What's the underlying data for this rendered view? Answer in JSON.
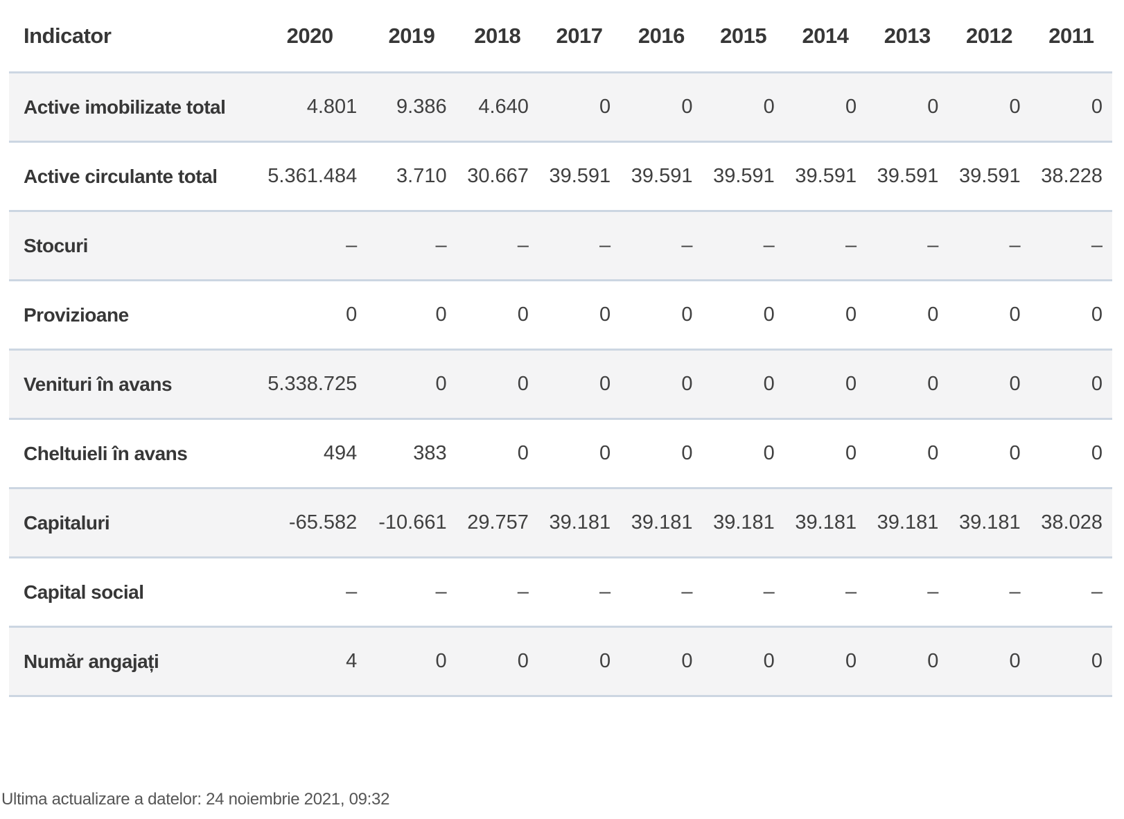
{
  "table": {
    "indicator_header": "Indicator",
    "year_headers": [
      "2020",
      "2019",
      "2018",
      "2017",
      "2016",
      "2015",
      "2014",
      "2013",
      "2012",
      "2011"
    ],
    "rows": [
      {
        "label": "Active imobilizate total",
        "values": [
          "4.801",
          "9.386",
          "4.640",
          "0",
          "0",
          "0",
          "0",
          "0",
          "0",
          "0"
        ]
      },
      {
        "label": "Active circulante total",
        "values": [
          "5.361.484",
          "3.710",
          "30.667",
          "39.591",
          "39.591",
          "39.591",
          "39.591",
          "39.591",
          "39.591",
          "38.228"
        ]
      },
      {
        "label": "Stocuri",
        "values": [
          "–",
          "–",
          "–",
          "–",
          "–",
          "–",
          "–",
          "–",
          "–",
          "–"
        ]
      },
      {
        "label": "Provizioane",
        "values": [
          "0",
          "0",
          "0",
          "0",
          "0",
          "0",
          "0",
          "0",
          "0",
          "0"
        ]
      },
      {
        "label": "Venituri în avans",
        "values": [
          "5.338.725",
          "0",
          "0",
          "0",
          "0",
          "0",
          "0",
          "0",
          "0",
          "0"
        ]
      },
      {
        "label": "Cheltuieli în avans",
        "values": [
          "494",
          "383",
          "0",
          "0",
          "0",
          "0",
          "0",
          "0",
          "0",
          "0"
        ]
      },
      {
        "label": "Capitaluri",
        "values": [
          "-65.582",
          "-10.661",
          "29.757",
          "39.181",
          "39.181",
          "39.181",
          "39.181",
          "39.181",
          "39.181",
          "38.028"
        ]
      },
      {
        "label": "Capital social",
        "values": [
          "–",
          "–",
          "–",
          "–",
          "–",
          "–",
          "–",
          "–",
          "–",
          "–"
        ]
      },
      {
        "label": "Număr angajați",
        "values": [
          "4",
          "0",
          "0",
          "0",
          "0",
          "0",
          "0",
          "0",
          "0",
          "0"
        ]
      }
    ]
  },
  "footer": {
    "last_update": "Ultima actualizare a datelor: 24 noiembrie 2021, 09:32"
  },
  "colors": {
    "row_alt_bg": "#f4f4f5",
    "row_border": "#ccd6e2",
    "heading_text": "#373737",
    "value_text": "#404040",
    "footer_text": "#555555"
  }
}
